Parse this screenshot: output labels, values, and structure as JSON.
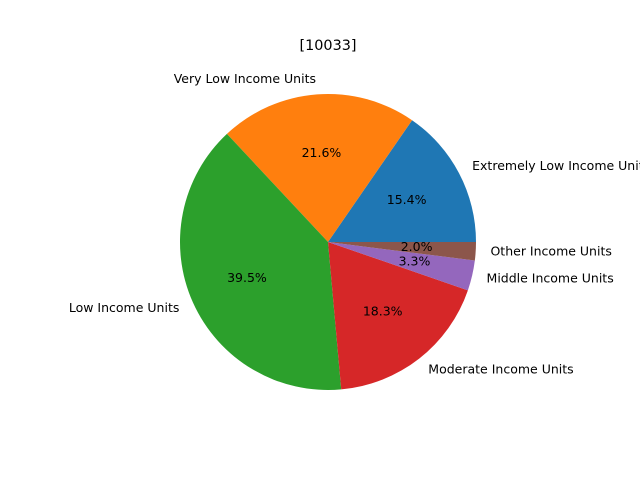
{
  "chart_data": {
    "type": "pie",
    "title": "[10033]",
    "categories": [
      "Extremely Low Income Units",
      "Very Low Income Units",
      "Low Income Units",
      "Moderate Income Units",
      "Middle Income Units",
      "Other Income Units"
    ],
    "values": [
      15.4,
      21.6,
      39.5,
      18.3,
      3.3,
      2.0
    ],
    "value_labels": [
      "15.4%",
      "21.6%",
      "39.5%",
      "18.3%",
      "3.3%",
      "2.0%"
    ],
    "colors": [
      "#1f77b4",
      "#ff7f0e",
      "#2ca02c",
      "#d62728",
      "#9467bd",
      "#8c564b"
    ],
    "start_angle_deg": 0,
    "direction": "counterclockwise",
    "legend": "none"
  }
}
